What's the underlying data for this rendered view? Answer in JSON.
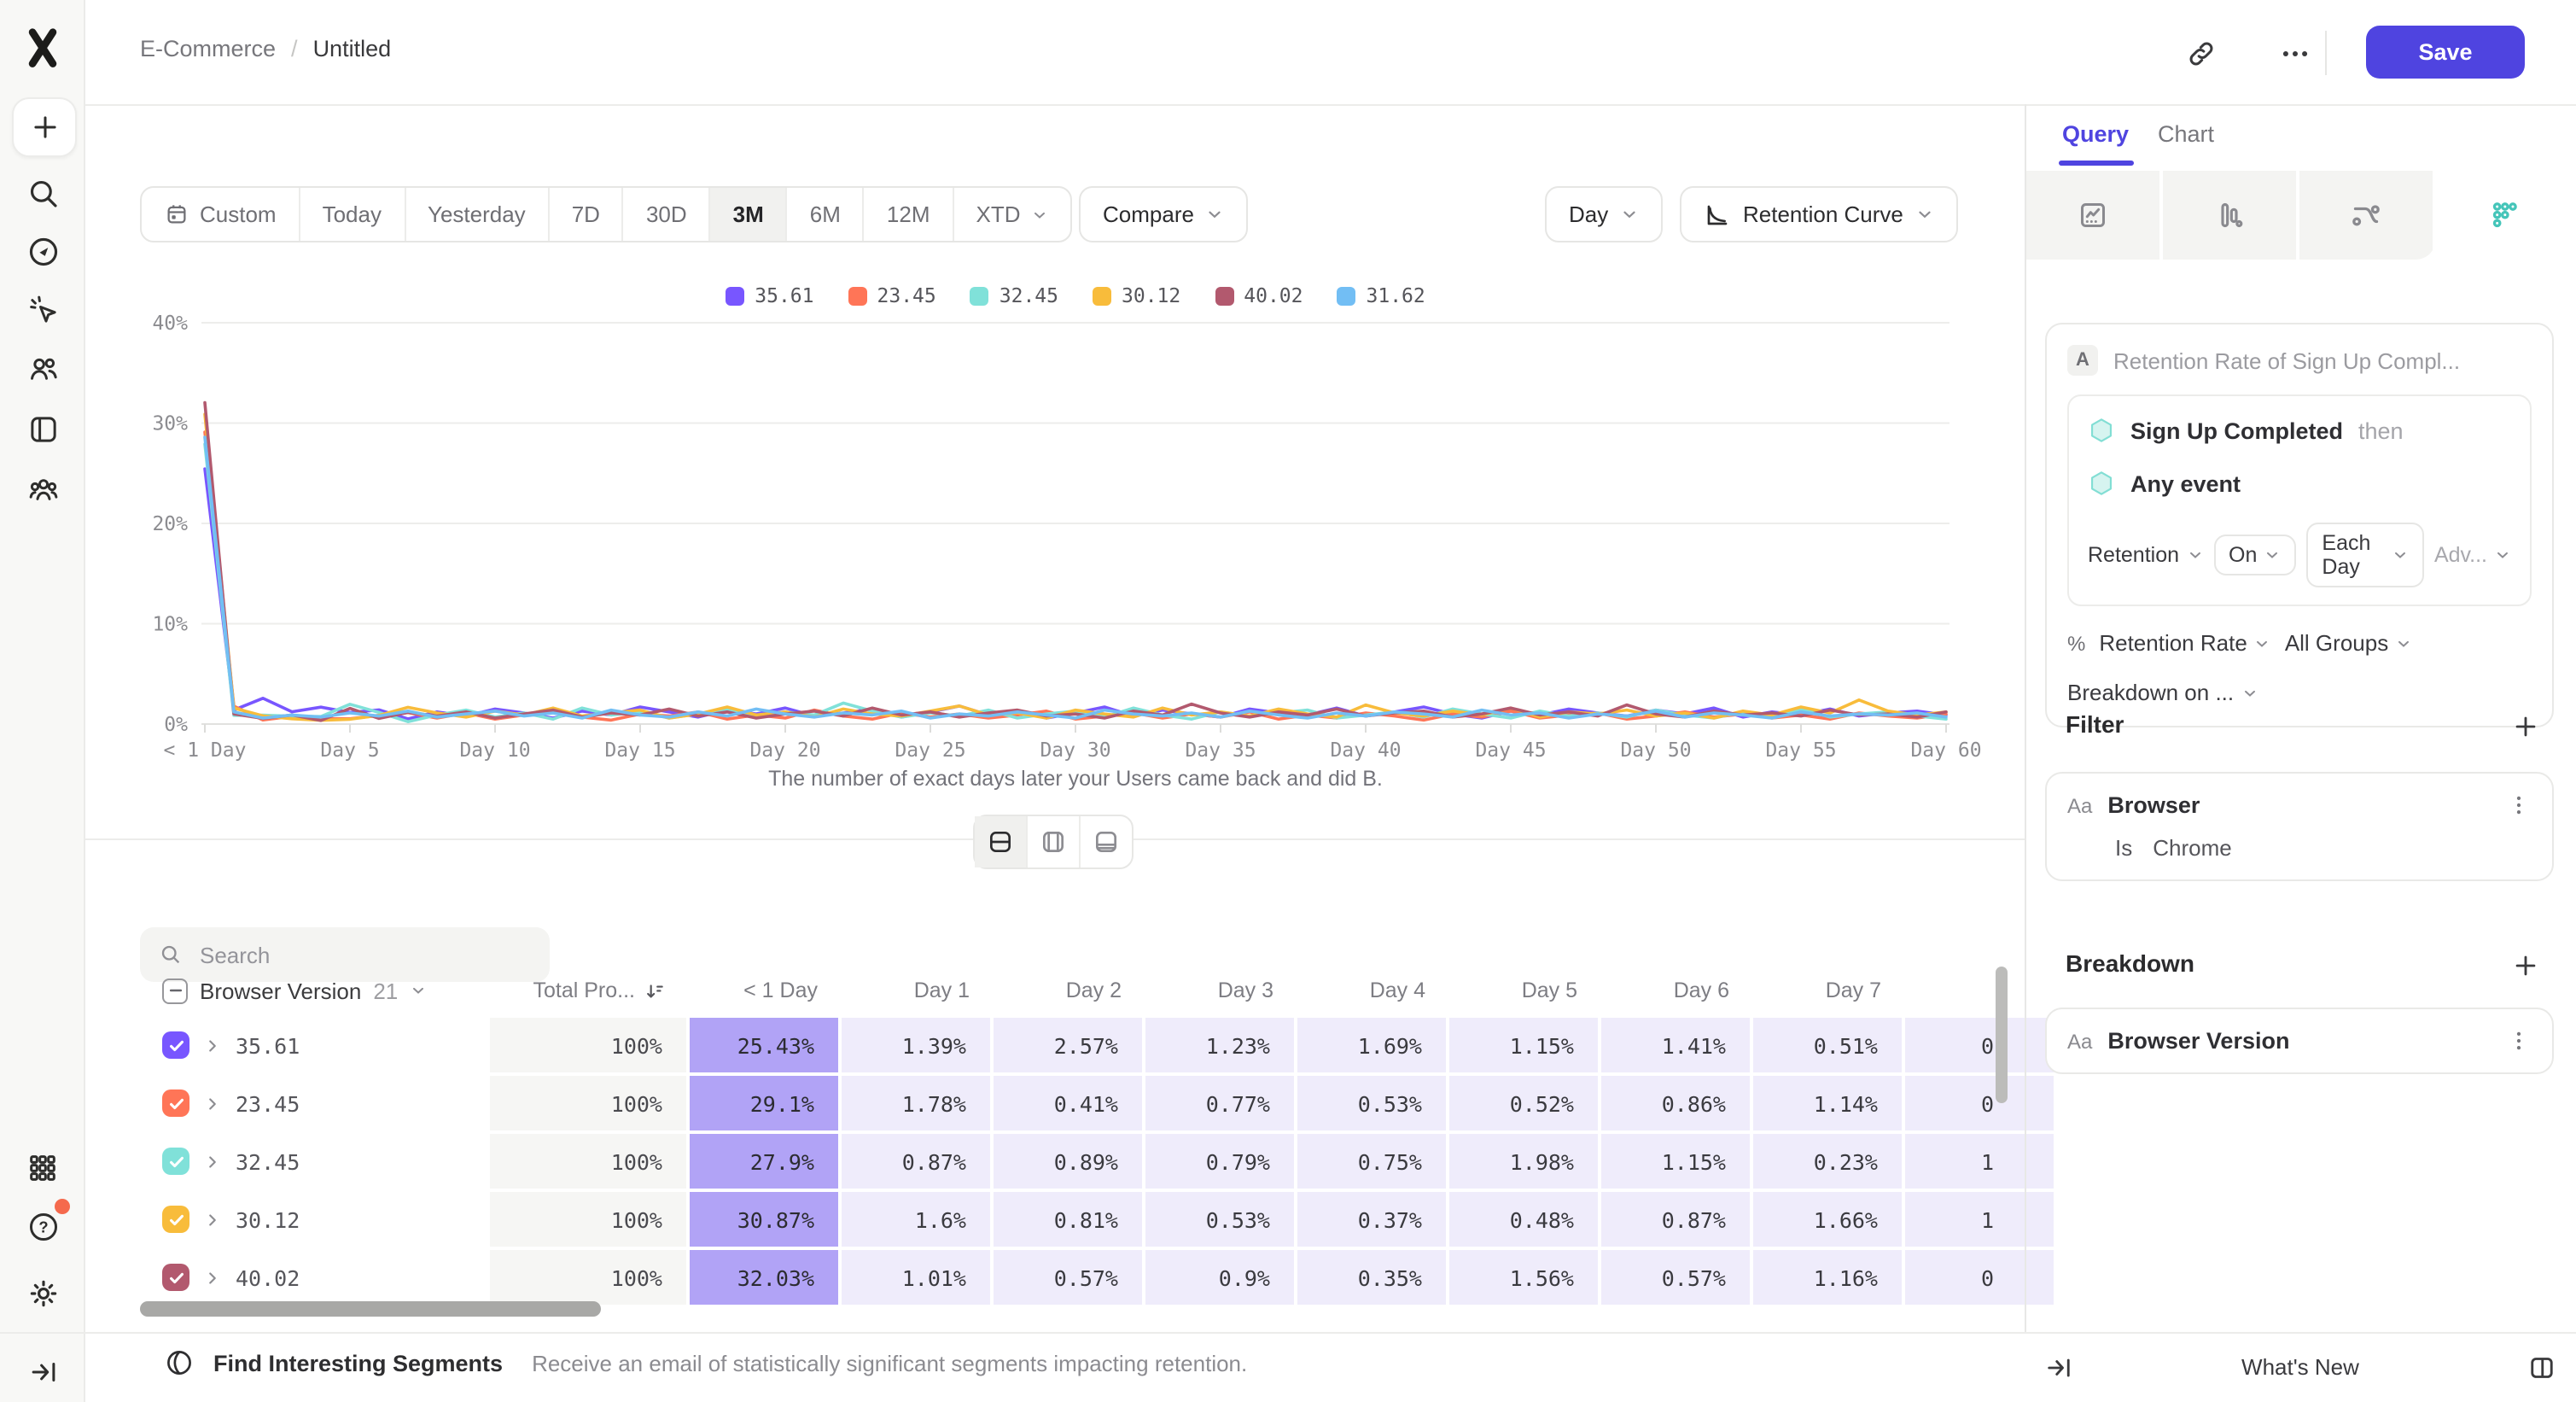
{
  "header": {
    "breadcrumb": {
      "root": "E-Commerce",
      "separator": "/",
      "current": "Untitled"
    },
    "save_label": "Save"
  },
  "sidebar": {
    "top_items": [
      "plus-icon",
      "search-icon",
      "compass-icon",
      "cursor-spark-icon",
      "users-icon",
      "board-icon",
      "group-icon"
    ],
    "bottom_items": [
      "grid-icon",
      "help-icon",
      "gear-icon"
    ],
    "expand_icon": "arrow-bar-right-icon"
  },
  "toolbar": {
    "date_ranges": [
      "Custom",
      "Today",
      "Yesterday",
      "7D",
      "30D",
      "3M",
      "6M",
      "12M",
      "XTD"
    ],
    "selected_range": "3M",
    "compare_label": "Compare",
    "granularity_label": "Day",
    "chart_type_label": "Retention Curve"
  },
  "chart_data": {
    "type": "line",
    "title": "",
    "subtitle": "The number of exact days later your Users came back and did B.",
    "xlabel_ticks": [
      "< 1 Day",
      "Day 5",
      "Day 10",
      "Day 15",
      "Day 20",
      "Day 25",
      "Day 30",
      "Day 35",
      "Day 40",
      "Day 45",
      "Day 50",
      "Day 55",
      "Day 60"
    ],
    "x_tick_days": [
      0,
      5,
      10,
      15,
      20,
      25,
      30,
      35,
      40,
      45,
      50,
      55,
      60
    ],
    "y_ticks": [
      "0%",
      "10%",
      "20%",
      "30%",
      "40%"
    ],
    "ylim": [
      0,
      40
    ],
    "x_range_days": [
      0,
      60
    ],
    "legend_position": "top-center",
    "series": [
      {
        "name": "35.61",
        "color": "#7856FF",
        "values": [
          25.43,
          1.39,
          2.57,
          1.23,
          1.69,
          1.15,
          1.41,
          0.51,
          1.2,
          0.8,
          1.5,
          1.1,
          0.6,
          1.3,
          0.9,
          1.7,
          1.2,
          0.7,
          1.4,
          1.0,
          1.6,
          0.8,
          1.1,
          1.5,
          0.7,
          1.2,
          1.8,
          0.9,
          1.3,
          0.6,
          1.1,
          1.7,
          0.8,
          1.4,
          1.0,
          0.7,
          1.5,
          1.1,
          0.9,
          1.6,
          0.8,
          1.2,
          1.7,
          1.0,
          0.6,
          1.3,
          0.9,
          1.5,
          1.1,
          0.8,
          1.4,
          1.0,
          1.6,
          0.7,
          1.2,
          0.9,
          1.5,
          0.8,
          1.1,
          1.3,
          0.9
        ]
      },
      {
        "name": "23.45",
        "color": "#FF7557",
        "values": [
          29.1,
          1.78,
          0.41,
          0.77,
          0.53,
          0.52,
          0.86,
          1.14,
          0.6,
          1.1,
          0.5,
          0.9,
          1.3,
          0.7,
          0.4,
          1.0,
          0.8,
          1.2,
          0.5,
          0.9,
          0.6,
          1.4,
          0.8,
          0.5,
          1.1,
          0.7,
          1.0,
          0.6,
          0.9,
          1.3,
          0.5,
          0.8,
          1.1,
          0.6,
          1.0,
          0.7,
          1.2,
          0.5,
          0.9,
          0.6,
          1.1,
          0.8,
          0.4,
          1.0,
          0.7,
          1.3,
          0.6,
          0.9,
          1.1,
          0.5,
          0.8,
          1.2,
          0.7,
          1.0,
          0.6,
          0.9,
          0.5,
          1.1,
          0.8,
          0.6,
          1.0
        ]
      },
      {
        "name": "32.45",
        "color": "#80E1D9",
        "values": [
          27.9,
          0.87,
          0.89,
          0.79,
          0.75,
          1.98,
          1.15,
          0.23,
          0.9,
          1.4,
          0.7,
          1.1,
          0.5,
          1.6,
          0.9,
          1.2,
          0.6,
          1.0,
          1.5,
          0.8,
          1.2,
          0.9,
          2.1,
          1.3,
          0.7,
          1.1,
          0.8,
          1.4,
          0.6,
          1.0,
          1.3,
          0.7,
          1.6,
          0.9,
          0.5,
          1.2,
          0.8,
          1.1,
          1.4,
          0.6,
          0.9,
          1.2,
          0.7,
          1.5,
          1.0,
          0.6,
          1.3,
          0.8,
          1.1,
          0.7,
          1.4,
          0.9,
          0.6,
          1.2,
          0.8,
          1.5,
          0.7,
          1.0,
          1.2,
          0.8,
          0.5
        ]
      },
      {
        "name": "30.12",
        "color": "#F8BC3B",
        "values": [
          30.87,
          1.6,
          0.81,
          0.53,
          0.37,
          0.48,
          0.87,
          1.66,
          1.1,
          0.7,
          1.3,
          0.9,
          1.6,
          0.8,
          1.1,
          1.4,
          0.6,
          1.0,
          1.7,
          0.9,
          1.2,
          0.7,
          1.5,
          1.0,
          0.8,
          1.3,
          1.8,
          0.9,
          1.1,
          0.6,
          1.4,
          1.0,
          0.7,
          1.6,
          0.9,
          1.2,
          0.8,
          1.5,
          1.0,
          0.7,
          1.9,
          1.1,
          0.8,
          1.3,
          0.9,
          1.6,
          0.7,
          1.2,
          1.0,
          1.4,
          0.8,
          1.1,
          0.6,
          1.3,
          0.9,
          1.7,
          1.1,
          2.4,
          1.3,
          0.9,
          1.2
        ]
      },
      {
        "name": "40.02",
        "color": "#B2596E",
        "values": [
          32.03,
          1.01,
          0.57,
          0.9,
          0.35,
          1.56,
          0.57,
          1.16,
          0.8,
          1.2,
          0.6,
          1.0,
          1.4,
          0.7,
          1.1,
          0.9,
          1.5,
          0.8,
          1.2,
          0.6,
          1.0,
          1.3,
          0.8,
          1.6,
          0.9,
          1.2,
          0.7,
          1.1,
          1.4,
          0.8,
          1.0,
          0.6,
          1.3,
          0.9,
          2.0,
          1.1,
          0.7,
          1.2,
          0.9,
          1.5,
          0.8,
          1.1,
          1.3,
          0.7,
          1.0,
          1.6,
          0.9,
          1.2,
          0.8,
          1.9,
          1.0,
          0.7,
          1.3,
          0.9,
          1.1,
          0.8,
          1.4,
          0.9,
          1.0,
          0.7,
          1.2
        ]
      },
      {
        "name": "31.62",
        "color": "#72BEF4",
        "values": [
          28.6,
          1.2,
          0.6,
          0.9,
          0.7,
          1.1,
          0.8,
          1.3,
          0.7,
          1.0,
          1.3,
          0.8,
          1.1,
          0.6,
          1.4,
          0.9,
          0.7,
          1.2,
          0.8,
          1.5,
          1.0,
          0.7,
          1.1,
          0.9,
          1.3,
          0.6,
          1.0,
          0.8,
          1.2,
          0.9,
          0.6,
          1.4,
          1.0,
          0.8,
          1.1,
          0.7,
          1.3,
          0.9,
          0.6,
          1.1,
          0.8,
          1.2,
          1.0,
          0.7,
          1.4,
          0.9,
          1.1,
          0.6,
          1.0,
          0.8,
          1.3,
          0.7,
          1.1,
          0.9,
          0.6,
          1.2,
          0.8,
          1.0,
          0.9,
          1.1,
          0.7
        ]
      }
    ]
  },
  "search": {
    "placeholder": "Search"
  },
  "table": {
    "group_column": "Browser Version",
    "group_count": "21",
    "total_column": "Total Pro...",
    "day_columns": [
      "< 1 Day",
      "Day 1",
      "Day 2",
      "Day 3",
      "Day 4",
      "Day 5",
      "Day 6",
      "Day 7"
    ],
    "rows": [
      {
        "label": "35.61",
        "color": "#7856FF",
        "total": "100%",
        "values": [
          "25.43%",
          "1.39%",
          "2.57%",
          "1.23%",
          "1.69%",
          "1.15%",
          "1.41%",
          "0.51%"
        ],
        "partial": "0"
      },
      {
        "label": "23.45",
        "color": "#FF7557",
        "total": "100%",
        "values": [
          "29.1%",
          "1.78%",
          "0.41%",
          "0.77%",
          "0.53%",
          "0.52%",
          "0.86%",
          "1.14%"
        ],
        "partial": "0"
      },
      {
        "label": "32.45",
        "color": "#80E1D9",
        "total": "100%",
        "values": [
          "27.9%",
          "0.87%",
          "0.89%",
          "0.79%",
          "0.75%",
          "1.98%",
          "1.15%",
          "0.23%"
        ],
        "partial": "1"
      },
      {
        "label": "30.12",
        "color": "#F8BC3B",
        "total": "100%",
        "values": [
          "30.87%",
          "1.6%",
          "0.81%",
          "0.53%",
          "0.37%",
          "0.48%",
          "0.87%",
          "1.66%"
        ],
        "partial": "1"
      },
      {
        "label": "40.02",
        "color": "#B2596E",
        "total": "100%",
        "values": [
          "32.03%",
          "1.01%",
          "0.57%",
          "0.9%",
          "0.35%",
          "1.56%",
          "0.57%",
          "1.16%"
        ],
        "partial": "0"
      }
    ]
  },
  "main_footer": {
    "title": "Find Interesting Segments",
    "description": "Receive an email of statistically significant segments impacting retention."
  },
  "panel": {
    "tabs": {
      "query": "Query",
      "chart": "Chart"
    },
    "report_types": [
      "insights-icon",
      "bars-icon",
      "flows-icon",
      "retention-dots-icon"
    ],
    "query": {
      "badge": "A",
      "title": "Retention Rate of Sign Up Compl...",
      "step1": "Sign Up Completed",
      "step1_suffix": "then",
      "step2": "Any event",
      "retention_label": "Retention",
      "on_label": "On",
      "each_day_label": "Each Day",
      "advanced_label": "Adv...",
      "pct": "%",
      "rate_label": "Retention Rate",
      "groups_label": "All Groups",
      "breakdown_on_label": "Breakdown on ..."
    },
    "filter": {
      "heading": "Filter",
      "type_badge": "Aa",
      "property": "Browser",
      "operator": "Is",
      "value": "Chrome"
    },
    "breakdown": {
      "heading": "Breakdown",
      "type_badge": "Aa",
      "property": "Browser Version"
    },
    "footer": {
      "whats_new": "What's New"
    }
  },
  "colors": {
    "accent_purple": "#4F44E0",
    "hexagon_fill": "#D6F4F0",
    "hexagon_stroke": "#82DED4",
    "table_day0_bg": "#B1A3F6",
    "table_day_bg": "#EFECFB",
    "retention_icon_teal": "#45C5B9",
    "notification_dot": "#F56A4D"
  }
}
